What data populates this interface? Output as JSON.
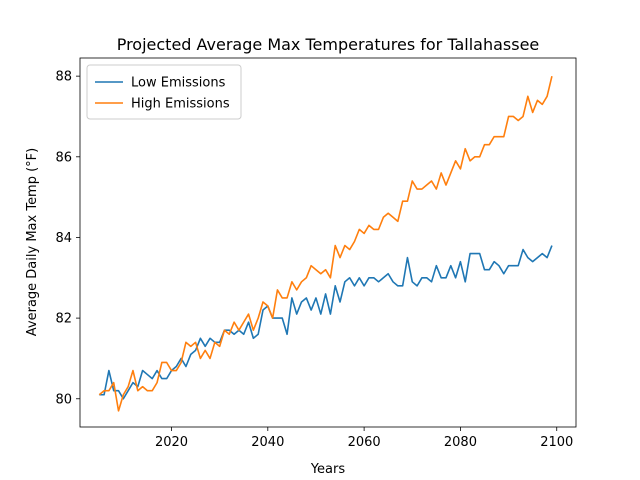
{
  "chart_data": {
    "type": "line",
    "title": "Projected Average Max Temperatures for Tallahassee",
    "xlabel": "Years",
    "ylabel": "Average Daily Max Temp (°F)",
    "xlim": [
      2001,
      2104
    ],
    "ylim": [
      79.3,
      88.45
    ],
    "xticks": [
      2020,
      2040,
      2060,
      2080,
      2100
    ],
    "yticks": [
      80,
      82,
      84,
      86,
      88
    ],
    "grid": false,
    "legend_position": "top-left",
    "series": [
      {
        "name": "Low Emissions",
        "color": "#1f77b4",
        "x": [
          2005,
          2006,
          2007,
          2008,
          2009,
          2010,
          2011,
          2012,
          2013,
          2014,
          2015,
          2016,
          2017,
          2018,
          2019,
          2020,
          2021,
          2022,
          2023,
          2024,
          2025,
          2026,
          2027,
          2028,
          2029,
          2030,
          2031,
          2032,
          2033,
          2034,
          2035,
          2036,
          2037,
          2038,
          2039,
          2040,
          2041,
          2042,
          2043,
          2044,
          2045,
          2046,
          2047,
          2048,
          2049,
          2050,
          2051,
          2052,
          2053,
          2054,
          2055,
          2056,
          2057,
          2058,
          2059,
          2060,
          2061,
          2062,
          2063,
          2064,
          2065,
          2066,
          2067,
          2068,
          2069,
          2070,
          2071,
          2072,
          2073,
          2074,
          2075,
          2076,
          2077,
          2078,
          2079,
          2080,
          2081,
          2082,
          2083,
          2084,
          2085,
          2086,
          2087,
          2088,
          2089,
          2090,
          2091,
          2092,
          2093,
          2094,
          2095,
          2096,
          2097,
          2098,
          2099
        ],
        "values": [
          80.1,
          80.1,
          80.7,
          80.2,
          80.2,
          80.0,
          80.2,
          80.4,
          80.3,
          80.7,
          80.6,
          80.5,
          80.7,
          80.5,
          80.5,
          80.7,
          80.8,
          81.0,
          80.8,
          81.1,
          81.2,
          81.5,
          81.3,
          81.5,
          81.4,
          81.4,
          81.7,
          81.7,
          81.6,
          81.7,
          81.6,
          81.9,
          81.5,
          81.6,
          82.2,
          82.3,
          82.0,
          82.0,
          82.0,
          81.6,
          82.5,
          82.1,
          82.4,
          82.5,
          82.2,
          82.5,
          82.1,
          82.6,
          82.1,
          82.8,
          82.4,
          82.9,
          83.0,
          82.8,
          83.0,
          82.8,
          83.0,
          83.0,
          82.9,
          83.0,
          83.1,
          82.9,
          82.8,
          82.8,
          83.5,
          82.9,
          82.8,
          83.0,
          83.0,
          82.9,
          83.3,
          83.0,
          83.0,
          83.3,
          83.0,
          83.4,
          82.9,
          83.6,
          83.6,
          83.6,
          83.2,
          83.2,
          83.4,
          83.3,
          83.1,
          83.3,
          83.3,
          83.3,
          83.7,
          83.5,
          83.4,
          83.5,
          83.6,
          83.5,
          83.8
        ]
      },
      {
        "name": "High Emissions",
        "color": "#ff7f0e",
        "x": [
          2005,
          2006,
          2007,
          2008,
          2009,
          2010,
          2011,
          2012,
          2013,
          2014,
          2015,
          2016,
          2017,
          2018,
          2019,
          2020,
          2021,
          2022,
          2023,
          2024,
          2025,
          2026,
          2027,
          2028,
          2029,
          2030,
          2031,
          2032,
          2033,
          2034,
          2035,
          2036,
          2037,
          2038,
          2039,
          2040,
          2041,
          2042,
          2043,
          2044,
          2045,
          2046,
          2047,
          2048,
          2049,
          2050,
          2051,
          2052,
          2053,
          2054,
          2055,
          2056,
          2057,
          2058,
          2059,
          2060,
          2061,
          2062,
          2063,
          2064,
          2065,
          2066,
          2067,
          2068,
          2069,
          2070,
          2071,
          2072,
          2073,
          2074,
          2075,
          2076,
          2077,
          2078,
          2079,
          2080,
          2081,
          2082,
          2083,
          2084,
          2085,
          2086,
          2087,
          2088,
          2089,
          2090,
          2091,
          2092,
          2093,
          2094,
          2095,
          2096,
          2097,
          2098,
          2099
        ],
        "values": [
          80.1,
          80.2,
          80.2,
          80.4,
          79.7,
          80.1,
          80.3,
          80.7,
          80.2,
          80.3,
          80.2,
          80.2,
          80.4,
          80.9,
          80.9,
          80.7,
          80.7,
          80.9,
          81.4,
          81.3,
          81.4,
          81.0,
          81.2,
          81.0,
          81.4,
          81.3,
          81.7,
          81.6,
          81.9,
          81.7,
          81.9,
          82.1,
          81.7,
          82.0,
          82.4,
          82.3,
          82.0,
          82.7,
          82.5,
          82.5,
          82.9,
          82.7,
          82.9,
          83.0,
          83.3,
          83.2,
          83.1,
          83.2,
          83.0,
          83.8,
          83.5,
          83.8,
          83.7,
          83.9,
          84.2,
          84.1,
          84.3,
          84.2,
          84.2,
          84.5,
          84.6,
          84.5,
          84.4,
          84.9,
          84.9,
          85.4,
          85.2,
          85.2,
          85.3,
          85.4,
          85.2,
          85.6,
          85.3,
          85.6,
          85.9,
          85.7,
          86.2,
          85.9,
          86.0,
          86.0,
          86.3,
          86.3,
          86.5,
          86.5,
          86.5,
          87.0,
          87.0,
          86.9,
          87.0,
          87.5,
          87.1,
          87.4,
          87.3,
          87.5,
          88.0
        ]
      }
    ]
  }
}
